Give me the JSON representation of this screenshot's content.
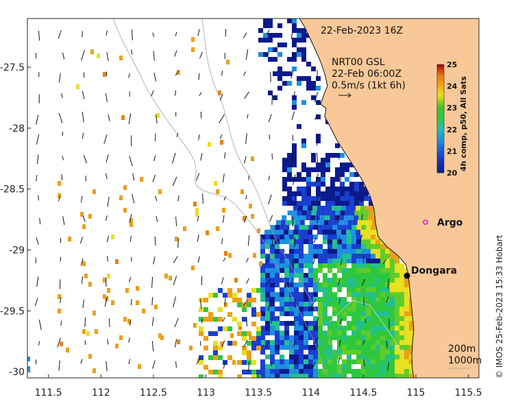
{
  "title": "22-Feb-2023 16Z",
  "current_info": {
    "source": "NRT00 GSL",
    "time": "22-Feb 06:00Z",
    "scale": "0.5m/s (1kt 6h)"
  },
  "colorbar": {
    "label": "4h comp, p50, All Sats",
    "min": 20,
    "max": 25,
    "ticks": [
      "20",
      "21",
      "22",
      "23",
      "24",
      "25"
    ],
    "colors": [
      "#0a1a8a",
      "#1a3fd0",
      "#1e8fe0",
      "#1fc0c0",
      "#2ec84a",
      "#3fbf30",
      "#b8d820",
      "#e8e020",
      "#f0a818",
      "#e87810",
      "#c83010",
      "#8a1010"
    ]
  },
  "axes": {
    "lon_ticks": [
      "111.5",
      "112",
      "112.5",
      "113",
      "113.5",
      "114",
      "114.5",
      "115",
      "115.5"
    ],
    "lat_ticks": [
      "-27.5",
      "-28",
      "-28.5",
      "-29",
      "-29.5",
      "-30"
    ],
    "lon_range": [
      111.3,
      115.6
    ],
    "lat_range": [
      -30.05,
      -27.1
    ]
  },
  "places": [
    {
      "name": "Argo",
      "lon": 115.05,
      "lat": -28.87,
      "marker": "open-circle"
    },
    {
      "name": "Dongara",
      "lon": 114.93,
      "lat": -29.25,
      "marker": "dot"
    }
  ],
  "legend": {
    "contour1": "200m",
    "contour2": "1000m"
  },
  "credit": "© IMOS 25-Feb-2023 15:33 Hobart",
  "colors": {
    "land": "#f8c898",
    "coast": "#111111",
    "contour": "#a0a0a0"
  }
}
